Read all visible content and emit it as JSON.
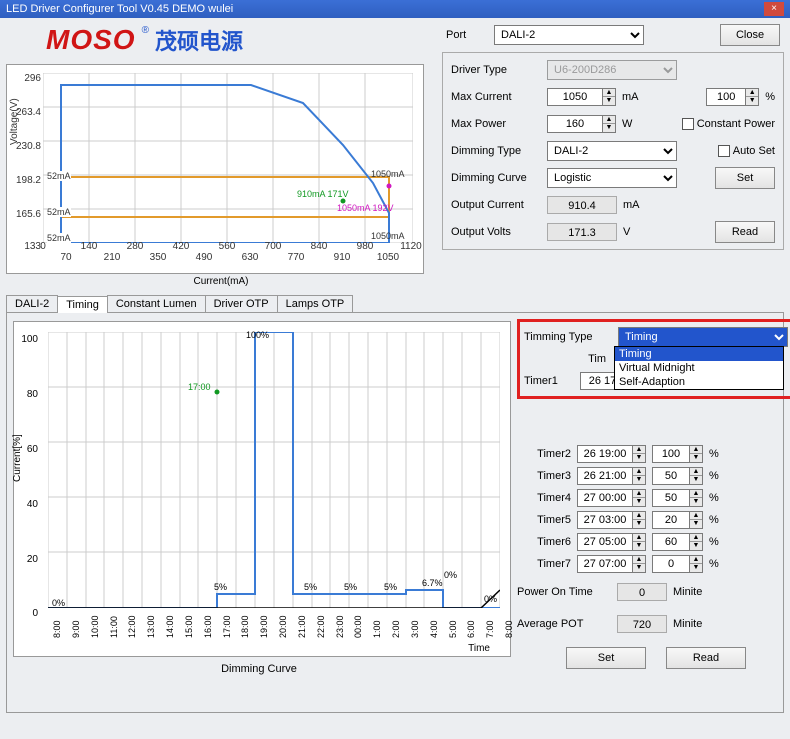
{
  "window": {
    "title": "LED Driver Configurer Tool V0.45 DEMO  wulei"
  },
  "logo": {
    "brand": "MOSO",
    "reg": "®",
    "cn": "茂硕电源"
  },
  "port": {
    "label": "Port",
    "value": "DALI-2",
    "close": "Close"
  },
  "driver": {
    "type_label": "Driver Type",
    "type_value": "U6-200D286",
    "maxcur_label": "Max Current",
    "maxcur_value": "1050",
    "maxcur_unit": "mA",
    "maxcur_pct": "100",
    "pct_unit": "%",
    "maxpow_label": "Max Power",
    "maxpow_value": "160",
    "maxpow_unit": "W",
    "constpow_label": "Constant Power",
    "dimtype_label": "Dimming Type",
    "dimtype_value": "DALI-2",
    "autoset_label": "Auto Set",
    "dimcurve_label": "Dimming Curve",
    "dimcurve_value": "Logistic",
    "set_btn": "Set",
    "outcur_label": "Output Current",
    "outcur_value": "910.4",
    "outcur_unit": "mA",
    "outv_label": "Output Volts",
    "outv_value": "171.3",
    "outv_unit": "V",
    "read_btn": "Read"
  },
  "tabs": {
    "t1": "DALI-2",
    "t2": "Timing",
    "t3": "Constant Lumen",
    "t4": "Driver OTP",
    "t5": "Lamps OTP"
  },
  "chart1": {
    "ylabel": "Voltage(V)",
    "xlabel": "Current(mA)",
    "yticks": [
      "296",
      "263.4",
      "230.8",
      "198.2",
      "165.6",
      "133"
    ],
    "xticks_top": [
      "0",
      "140",
      "280",
      "420",
      "560",
      "700",
      "840",
      "980",
      "1120"
    ],
    "xticks_bot": [
      "70",
      "210",
      "350",
      "490",
      "630",
      "770",
      "910",
      "1050"
    ],
    "ann_52a": "52mA",
    "ann_52b": "52mA",
    "ann_52c": "52mA",
    "ann_910": "910mA 171V",
    "ann_1050a": "1050mA",
    "ann_1050b": "1050mA 192V",
    "ann_1050c": "1050mA",
    "line_color": "#3a7bd5",
    "box_color": "#e29a2b",
    "ylim": [
      133,
      296
    ],
    "xlim": [
      0,
      1120
    ]
  },
  "timing_chart": {
    "ylabel": "Current[%]",
    "xlabel": "Time",
    "title_below": "Dimming Curve",
    "yticks": [
      "100",
      "80",
      "60",
      "40",
      "20",
      "0"
    ],
    "xticks": [
      "8:00",
      "9:00",
      "10:00",
      "11:00",
      "12:00",
      "13:00",
      "14:00",
      "15:00",
      "16:00",
      "17:00",
      "18:00",
      "19:00",
      "20:00",
      "21:00",
      "22:00",
      "23:00",
      "00:00",
      "1:00",
      "2:00",
      "3:00",
      "4:00",
      "5:00",
      "6:00",
      "7:00",
      "8:00"
    ],
    "ann_100": "100%",
    "ann_1700": "17:00",
    "ann_5a": "5%",
    "ann_5b": "5%",
    "ann_5c": "5%",
    "ann_5d": "5%",
    "ann_6": "6.7%",
    "ann_0a": "0%",
    "ann_0b": "0%",
    "ann_0c": "0%",
    "line_color": "#3a7bd5",
    "series_color": "#119922"
  },
  "timing_panel": {
    "type_label": "Timming Type",
    "type_value": "Timing",
    "opts": {
      "o1": "Timing",
      "o2": "Virtual Midnight",
      "o3": "Self-Adaption"
    },
    "tim_label": "Tim",
    "t1_label": "Timer1",
    "t1_time": "26 17:",
    "t1_pct": "",
    "t2_label": "Timer2",
    "t2_time": "26 19:00",
    "t2_pct": "100",
    "pct": "%",
    "t3_label": "Timer3",
    "t3_time": "26 21:00",
    "t3_pct": "50",
    "t4_label": "Timer4",
    "t4_time": "27 00:00",
    "t4_pct": "50",
    "t5_label": "Timer5",
    "t5_time": "27 03:00",
    "t5_pct": "20",
    "t6_label": "Timer6",
    "t6_time": "27 05:00",
    "t6_pct": "60",
    "t7_label": "Timer7",
    "t7_time": "27 07:00",
    "t7_pct": "0",
    "pot_label": "Power On Time",
    "pot_value": "0",
    "pot_unit": "Minite",
    "apot_label": "Average POT",
    "apot_value": "720",
    "apot_unit": "Minite",
    "set_btn": "Set",
    "read_btn": "Read"
  }
}
